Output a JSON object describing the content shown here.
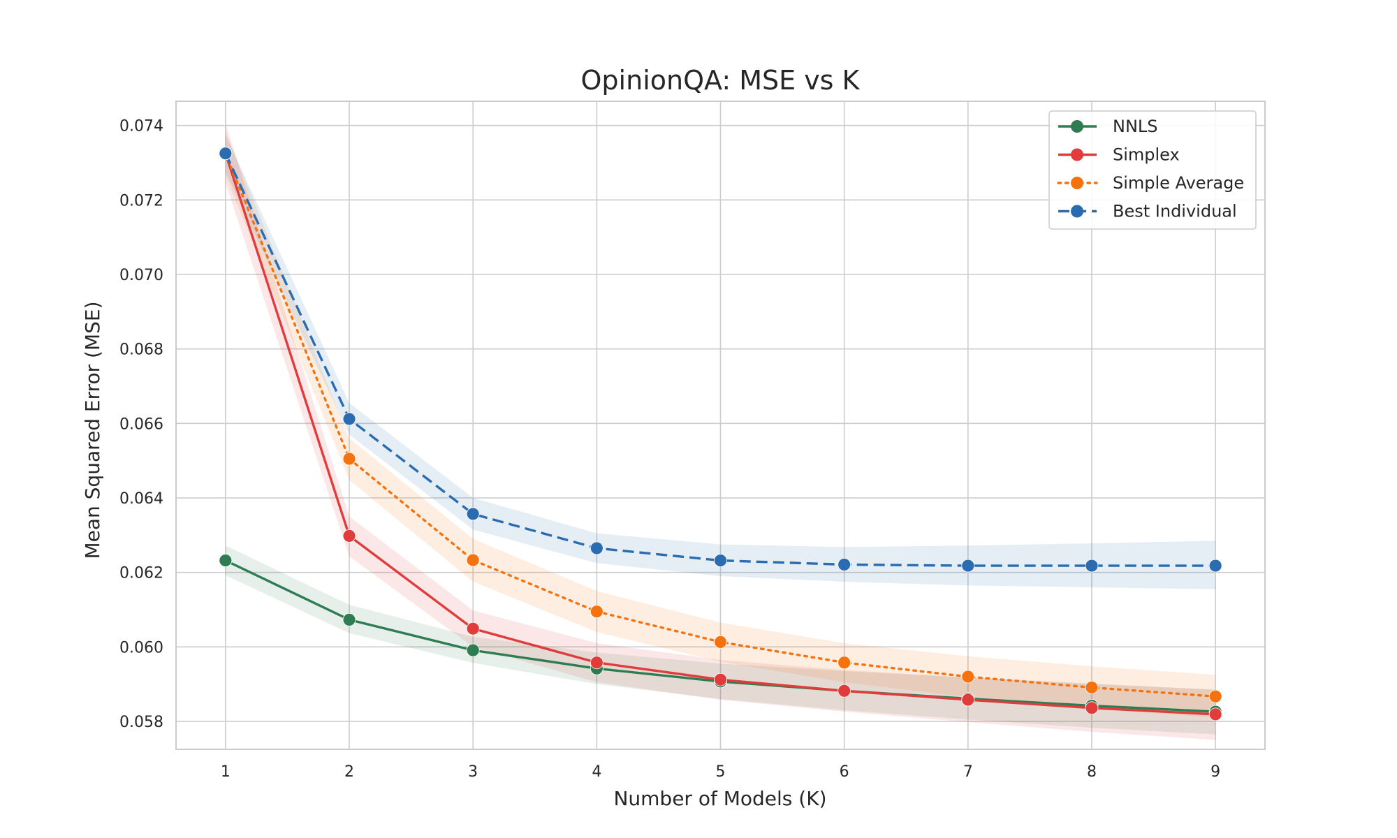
{
  "chart_data": {
    "type": "line",
    "title": "OpinionQA: MSE vs K",
    "xlabel": "Number of Models (K)",
    "ylabel": "Mean Squared Error (MSE)",
    "x": [
      1,
      2,
      3,
      4,
      5,
      6,
      7,
      8,
      9
    ],
    "xlim": [
      0.6,
      9.4
    ],
    "ylim": [
      0.05725,
      0.07465
    ],
    "x_ticks": [
      "1",
      "2",
      "3",
      "4",
      "5",
      "6",
      "7",
      "8",
      "9"
    ],
    "y_ticks": [
      {
        "value": 0.058,
        "label": "0.058"
      },
      {
        "value": 0.06,
        "label": "0.060"
      },
      {
        "value": 0.062,
        "label": "0.062"
      },
      {
        "value": 0.064,
        "label": "0.064"
      },
      {
        "value": 0.066,
        "label": "0.066"
      },
      {
        "value": 0.068,
        "label": "0.068"
      },
      {
        "value": 0.07,
        "label": "0.070"
      },
      {
        "value": 0.072,
        "label": "0.072"
      },
      {
        "value": 0.074,
        "label": "0.074"
      }
    ],
    "grid": true,
    "legend_position": "top-right",
    "series": [
      {
        "name": "NNLS",
        "color": "#2e7d52",
        "style": "solid",
        "values": [
          0.06232,
          0.06073,
          0.05991,
          0.05942,
          0.05907,
          0.05882,
          0.05861,
          0.05842,
          0.05826
        ],
        "lower": [
          0.06192,
          0.06037,
          0.05957,
          0.059,
          0.0586,
          0.0583,
          0.05805,
          0.05783,
          0.05765
        ],
        "upper": [
          0.06272,
          0.06113,
          0.06027,
          0.05985,
          0.05955,
          0.05935,
          0.05918,
          0.05902,
          0.05885
        ]
      },
      {
        "name": "Simplex",
        "color": "#e03c3c",
        "style": "solid",
        "values": [
          0.07325,
          0.06298,
          0.06049,
          0.05958,
          0.05912,
          0.05882,
          0.05858,
          0.05836,
          0.05819
        ],
        "lower": [
          0.07245,
          0.06243,
          0.06,
          0.05905,
          0.05858,
          0.05826,
          0.05798,
          0.05772,
          0.0575
        ],
        "upper": [
          0.07405,
          0.0635,
          0.06098,
          0.0601,
          0.05965,
          0.05938,
          0.05918,
          0.059,
          0.05885
        ]
      },
      {
        "name": "Simple Average",
        "color": "#f5730f",
        "style": "dotted",
        "values": [
          0.07325,
          0.06505,
          0.06233,
          0.06095,
          0.06013,
          0.05958,
          0.0592,
          0.05891,
          0.05867
        ],
        "lower": [
          0.07265,
          0.06448,
          0.06175,
          0.0604,
          0.0596,
          0.05905,
          0.05865,
          0.05835,
          0.0581
        ],
        "upper": [
          0.07385,
          0.0656,
          0.0629,
          0.0615,
          0.06065,
          0.0601,
          0.05975,
          0.05948,
          0.05925
        ]
      },
      {
        "name": "Best Individual",
        "color": "#2b6cb0",
        "style": "dashed",
        "values": [
          0.07325,
          0.06612,
          0.06357,
          0.06265,
          0.06232,
          0.06221,
          0.06218,
          0.06218,
          0.06218
        ],
        "lower": [
          0.07275,
          0.0657,
          0.06315,
          0.06225,
          0.0619,
          0.06175,
          0.06165,
          0.0616,
          0.06155
        ],
        "upper": [
          0.07375,
          0.06655,
          0.064,
          0.06305,
          0.06275,
          0.06268,
          0.06272,
          0.06278,
          0.06285
        ]
      }
    ]
  }
}
